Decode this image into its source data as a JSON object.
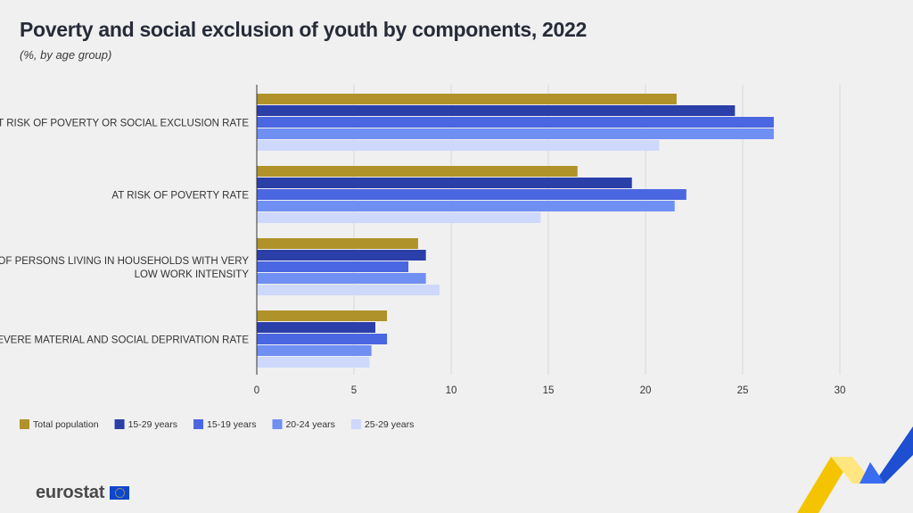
{
  "title": "Poverty and social exclusion of youth by components, 2022",
  "subtitle": "(%, by age group)",
  "footer": {
    "logo_text": "eurostat"
  },
  "colors": {
    "background": "#f0f0f0",
    "total_population": "#b0922a",
    "age_15_29": "#2a3fa8",
    "age_15_19": "#4a66e0",
    "age_20_24": "#6f8ff3",
    "age_25_29": "#cdd8fb",
    "grid": "#d9d9d9",
    "text": "#333333"
  },
  "chart_data": {
    "type": "bar",
    "orientation": "horizontal",
    "categories": [
      "AT RISK OF POVERTY OR SOCIAL EXCLUSION RATE",
      "AT RISK OF POVERTY RATE",
      "SHARE OF PERSONS LIVING IN HOUSEHOLDS  WITH  VERY LOW WORK INTENSITY",
      "SEVERE MATERIAL AND SOCIAL DEPRIVATION RATE"
    ],
    "category_lines": [
      [
        "AT RISK OF POVERTY OR SOCIAL EXCLUSION RATE"
      ],
      [
        "AT RISK OF POVERTY RATE"
      ],
      [
        "SHARE OF PERSONS LIVING IN HOUSEHOLDS  WITH  VERY",
        "LOW WORK INTENSITY"
      ],
      [
        "SEVERE MATERIAL AND SOCIAL DEPRIVATION RATE"
      ]
    ],
    "series": [
      {
        "name": "Total population",
        "color": "#b0922a",
        "values": [
          21.6,
          16.5,
          8.3,
          6.7
        ]
      },
      {
        "name": "15-29 years",
        "color": "#2a3fa8",
        "values": [
          24.6,
          19.3,
          8.7,
          6.1
        ]
      },
      {
        "name": "15-19 years",
        "color": "#4a66e0",
        "values": [
          26.6,
          22.1,
          7.8,
          6.7
        ]
      },
      {
        "name": "20-24 years",
        "color": "#6f8ff3",
        "values": [
          26.6,
          21.5,
          8.7,
          5.9
        ]
      },
      {
        "name": "25-29 years",
        "color": "#cdd8fb",
        "values": [
          20.7,
          14.6,
          9.4,
          5.8
        ]
      }
    ],
    "xlim": [
      0,
      30
    ],
    "xticks": [
      0,
      5,
      10,
      15,
      20,
      25,
      30
    ],
    "xlabel": "",
    "ylabel": "",
    "grid": "vertical",
    "legend_position": "bottom-left"
  }
}
